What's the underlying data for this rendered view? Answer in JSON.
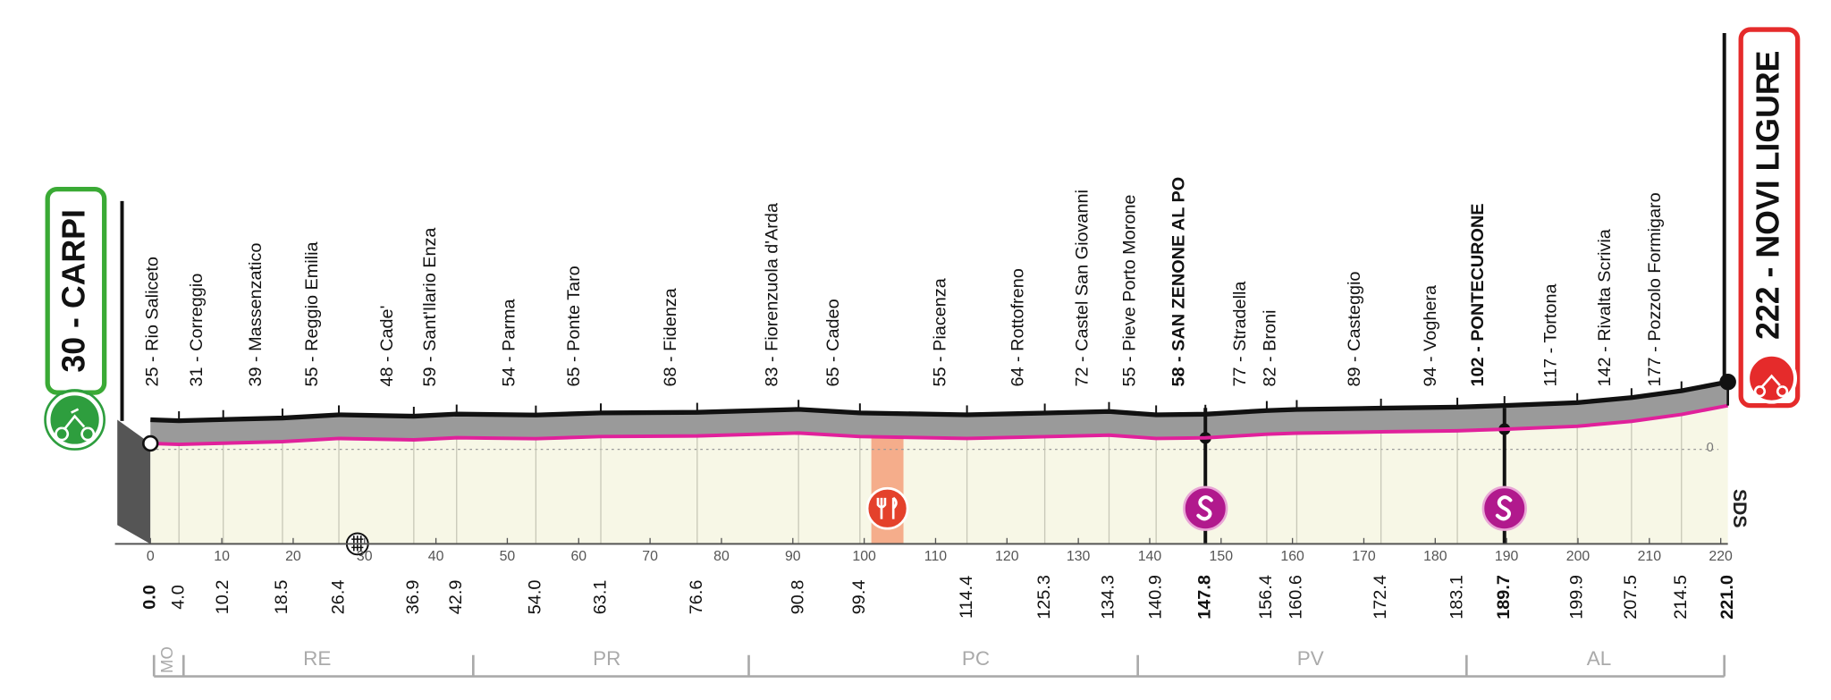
{
  "chart_data": {
    "type": "profile",
    "start": "30 - CARPI",
    "finish": "222 - NOVI LIGURE",
    "xlim": [
      0,
      221
    ],
    "xticks": [
      0,
      10,
      20,
      30,
      40,
      50,
      60,
      70,
      80,
      90,
      100,
      110,
      120,
      130,
      140,
      150,
      160,
      170,
      180,
      190,
      200,
      210,
      220
    ],
    "ylim": [
      -480,
      240
    ],
    "yticks": [
      0
    ],
    "start_km": {
      "value": 0,
      "label": "0.0"
    },
    "finish_km": {
      "value": 221,
      "label": "221.0"
    },
    "towns": [
      {
        "name": "25 - Rio Saliceto",
        "km": {
          "value": 4,
          "label": "4.0"
        }
      },
      {
        "name": "31 - Correggio",
        "km": {
          "value": 10.2,
          "label": "10.2"
        }
      },
      {
        "name": "39 - Massenzatico",
        "km": {
          "value": 18.5,
          "label": "18.5"
        }
      },
      {
        "name": "55 - Reggio Emilia",
        "km": {
          "value": 26.4,
          "label": "26.4"
        }
      },
      {
        "name": "48 - Cade'",
        "km": {
          "value": 36.9,
          "label": "36.9"
        }
      },
      {
        "name": "59 - Sant'Ilario Enza",
        "km": {
          "value": 42.9,
          "label": "42.9"
        }
      },
      {
        "name": "54 - Parma",
        "km": {
          "value": 54,
          "label": "54.0"
        }
      },
      {
        "name": "65 - Ponte Taro",
        "km": {
          "value": 63.1,
          "label": "63.1"
        }
      },
      {
        "name": "68 - Fidenza",
        "km": {
          "value": 76.6,
          "label": "76.6"
        }
      },
      {
        "name": "83 - Fiorenzuola d'Arda",
        "km": {
          "value": 90.8,
          "label": "90.8"
        }
      },
      {
        "name": "65 - Cadeo",
        "km": {
          "value": 99.4,
          "label": "99.4"
        }
      },
      {
        "name": "55 - Piacenza",
        "km": {
          "value": 114.4,
          "label": "114.4"
        }
      },
      {
        "name": "64 - Rottofreno",
        "km": {
          "value": 125.3,
          "label": "125.3"
        }
      },
      {
        "name": "72 - Castel San Giovanni",
        "km": {
          "value": 134.3,
          "label": "134.3"
        }
      },
      {
        "name": "55 - Pieve Porto Morone",
        "km": {
          "value": 140.9,
          "label": "140.9"
        }
      },
      {
        "name": "58 - SAN ZENONE AL PO",
        "km": {
          "value": 147.8,
          "label": "147.8"
        },
        "sprint": true
      },
      {
        "name": "77 - Stradella",
        "km": {
          "value": 156.4,
          "label": "156.4"
        }
      },
      {
        "name": "82 - Broni",
        "km": {
          "value": 160.6,
          "label": "160.6"
        }
      },
      {
        "name": "89 - Casteggio",
        "km": {
          "value": 172.4,
          "label": "172.4"
        }
      },
      {
        "name": "94 - Voghera",
        "km": {
          "value": 183.1,
          "label": "183.1"
        }
      },
      {
        "name": "102 - PONTECURONE",
        "km": {
          "value": 189.7,
          "label": "189.7"
        },
        "sprint": true
      },
      {
        "name": "117 - Tortona",
        "km": {
          "value": 199.9,
          "label": "199.9"
        }
      },
      {
        "name": "142 - Rivalta Scrivia",
        "km": {
          "value": 207.5,
          "label": "207.5"
        }
      },
      {
        "name": "177 - Pozzolo Formigaro",
        "km": {
          "value": 214.5,
          "label": "214.5"
        }
      }
    ],
    "profile": {
      "color": "#e0219b",
      "x": [
        0,
        4,
        10.2,
        18.5,
        26.4,
        36.9,
        42.9,
        54,
        63.1,
        76.6,
        90.8,
        99.4,
        114.4,
        125.3,
        134.3,
        140.9,
        147.8,
        156.4,
        160.6,
        172.4,
        183.1,
        189.7,
        199.9,
        207.5,
        214.5,
        221
      ],
      "values": [
        30,
        25,
        31,
        39,
        55,
        48,
        59,
        54,
        65,
        68,
        83,
        65,
        55,
        64,
        72,
        55,
        58,
        77,
        82,
        89,
        94,
        102,
        117,
        142,
        177,
        222
      ]
    },
    "feed_zone": [
      101,
      105.5
    ],
    "railway_km": 29,
    "provinces": [
      "MO",
      "RE",
      "PR",
      "PC",
      "PV",
      "AL"
    ],
    "side_label": "SDS"
  }
}
